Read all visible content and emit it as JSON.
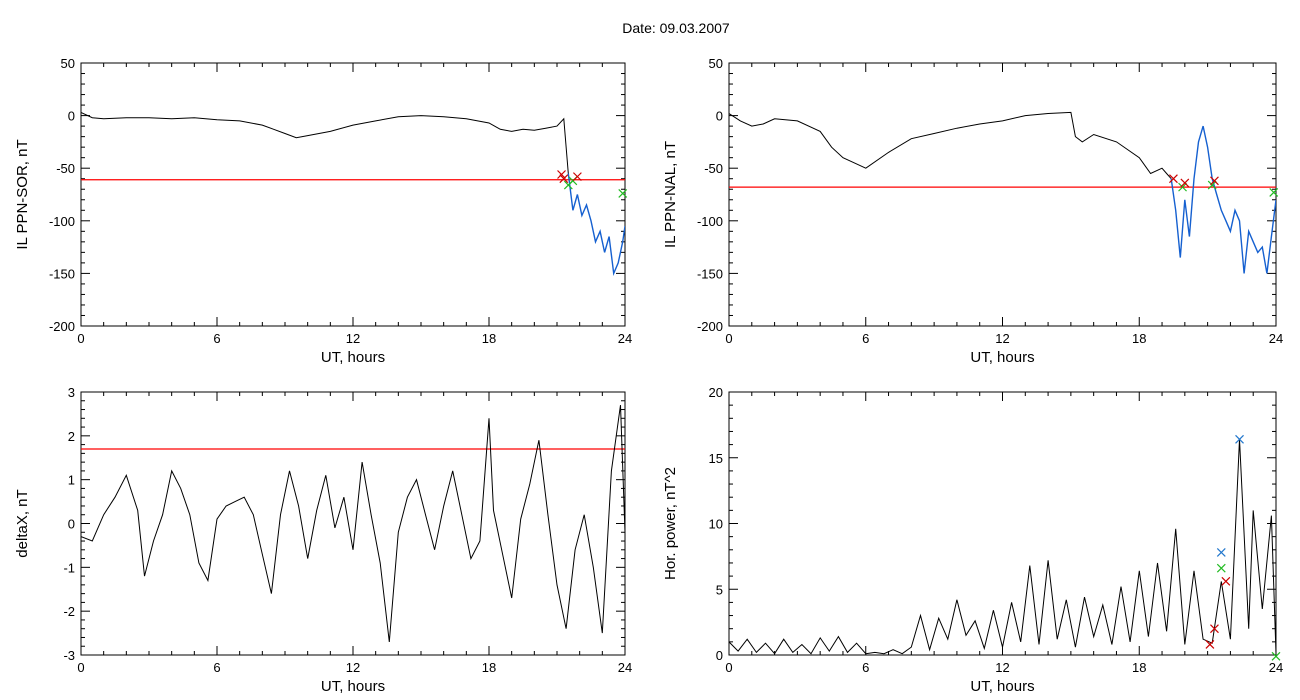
{
  "figure": {
    "title": "Date:  09.03.2007"
  },
  "colors": {
    "axis": "#000000",
    "trace": "#000000",
    "threshold": "#ff0000",
    "event": "#1560d0",
    "marker_red": "#cc0000",
    "marker_green": "#22bb22",
    "marker_blue": "#2277cc"
  },
  "chart_data": [
    {
      "id": "sor",
      "type": "line",
      "xlabel": "UT, hours",
      "ylabel": "IL PPN-SOR, nT",
      "xlim": [
        0,
        24
      ],
      "ylim": [
        -200,
        50
      ],
      "xticks": [
        0,
        6,
        12,
        18,
        24
      ],
      "xtick_labels": [
        "0",
        "6",
        "12",
        "18",
        "24"
      ],
      "yticks": [
        -200,
        -150,
        -100,
        -50,
        0,
        50
      ],
      "ytick_labels": [
        "-200",
        "-150",
        "-100",
        "-50",
        "0",
        "50"
      ],
      "threshold": -61,
      "series": [
        {
          "role": "trace",
          "color": "#000000",
          "x": [
            0,
            0.5,
            1,
            2,
            3,
            4,
            5,
            6,
            7,
            8,
            8.5,
            9,
            9.5,
            10,
            11,
            12,
            13,
            14,
            15,
            16,
            17,
            18,
            18.5,
            19,
            19.5,
            20,
            20.5,
            21,
            21.3,
            21.5
          ],
          "y": [
            3,
            -2,
            -3,
            -2,
            -2,
            -3,
            -2,
            -4,
            -5,
            -9,
            -13,
            -17,
            -21,
            -19,
            -15,
            -9,
            -5,
            -1,
            0,
            -1,
            -3,
            -7,
            -13,
            -15,
            -13,
            -14,
            -12,
            -10,
            -3,
            -55
          ]
        },
        {
          "role": "event",
          "color": "#1560d0",
          "x": [
            21.5,
            21.7,
            21.9,
            22.1,
            22.3,
            22.5,
            22.7,
            22.9,
            23.1,
            23.3,
            23.5,
            23.7,
            23.9,
            24
          ],
          "y": [
            -55,
            -90,
            -75,
            -95,
            -85,
            -100,
            -120,
            -110,
            -130,
            -115,
            -150,
            -140,
            -120,
            -105
          ]
        }
      ],
      "markers": [
        {
          "x": 21.2,
          "y": -56,
          "color": "#cc0000"
        },
        {
          "x": 21.3,
          "y": -60,
          "color": "#cc0000"
        },
        {
          "x": 21.5,
          "y": -66,
          "color": "#22bb22"
        },
        {
          "x": 21.7,
          "y": -62,
          "color": "#22bb22"
        },
        {
          "x": 21.9,
          "y": -58,
          "color": "#cc0000"
        },
        {
          "x": 23.9,
          "y": -74,
          "color": "#22bb22"
        }
      ]
    },
    {
      "id": "nal",
      "type": "line",
      "xlabel": "UT, hours",
      "ylabel": "IL PPN-NAL, nT",
      "xlim": [
        0,
        24
      ],
      "ylim": [
        -200,
        50
      ],
      "xticks": [
        0,
        6,
        12,
        18,
        24
      ],
      "xtick_labels": [
        "0",
        "6",
        "12",
        "18",
        "24"
      ],
      "yticks": [
        -200,
        -150,
        -100,
        -50,
        0,
        50
      ],
      "ytick_labels": [
        "-200",
        "-150",
        "-100",
        "-50",
        "0",
        "50"
      ],
      "threshold": -68,
      "series": [
        {
          "role": "trace",
          "color": "#000000",
          "x": [
            0,
            0.5,
            1,
            1.5,
            2,
            3,
            4,
            4.5,
            5,
            5.5,
            6,
            7,
            8,
            9,
            10,
            11,
            12,
            13,
            14,
            15,
            15.2,
            15.5,
            16,
            17,
            18,
            18.5,
            19,
            19.2,
            19.4
          ],
          "y": [
            2,
            -5,
            -10,
            -8,
            -3,
            -5,
            -15,
            -30,
            -40,
            -45,
            -50,
            -35,
            -22,
            -17,
            -12,
            -8,
            -5,
            0,
            2,
            3,
            -20,
            -25,
            -18,
            -25,
            -40,
            -55,
            -50,
            -55,
            -60
          ]
        },
        {
          "role": "event",
          "color": "#1560d0",
          "x": [
            19.4,
            19.6,
            19.8,
            20,
            20.2,
            20.4,
            20.6,
            20.8,
            21,
            21.2,
            21.4,
            21.6,
            21.8,
            22,
            22.2,
            22.4,
            22.6,
            22.8,
            23,
            23.2,
            23.4,
            23.6,
            23.8,
            24
          ],
          "y": [
            -60,
            -90,
            -135,
            -80,
            -115,
            -60,
            -25,
            -10,
            -30,
            -60,
            -75,
            -90,
            -100,
            -110,
            -90,
            -100,
            -150,
            -110,
            -120,
            -130,
            -125,
            -150,
            -115,
            -80
          ]
        }
      ],
      "markers": [
        {
          "x": 19.5,
          "y": -60,
          "color": "#cc0000"
        },
        {
          "x": 19.9,
          "y": -68,
          "color": "#22bb22"
        },
        {
          "x": 20.0,
          "y": -64,
          "color": "#cc0000"
        },
        {
          "x": 21.2,
          "y": -66,
          "color": "#22bb22"
        },
        {
          "x": 21.3,
          "y": -62,
          "color": "#cc0000"
        },
        {
          "x": 23.9,
          "y": -73,
          "color": "#22bb22"
        }
      ]
    },
    {
      "id": "deltax",
      "type": "line",
      "xlabel": "UT, hours",
      "ylabel": "deltaX, nT",
      "xlim": [
        0,
        24
      ],
      "ylim": [
        -3,
        3
      ],
      "xticks": [
        0,
        6,
        12,
        18,
        24
      ],
      "xtick_labels": [
        "0",
        "6",
        "12",
        "18",
        "24"
      ],
      "yticks": [
        -3,
        -2,
        -1,
        0,
        1,
        2,
        3
      ],
      "ytick_labels": [
        "-3",
        "-2",
        "-1",
        "0",
        "1",
        "2",
        "3"
      ],
      "threshold": 1.7,
      "series": [
        {
          "role": "trace",
          "color": "#000000",
          "x": [
            0,
            0.5,
            1,
            1.5,
            2,
            2.5,
            2.8,
            3.2,
            3.6,
            4,
            4.4,
            4.8,
            5.2,
            5.6,
            6,
            6.4,
            6.8,
            7.2,
            7.6,
            8,
            8.4,
            8.8,
            9.2,
            9.6,
            10,
            10.4,
            10.8,
            11.2,
            11.6,
            12,
            12.4,
            12.8,
            13.2,
            13.6,
            14,
            14.4,
            14.8,
            15.2,
            15.6,
            16,
            16.4,
            16.8,
            17.2,
            17.6,
            18,
            18.2,
            18.6,
            19,
            19.4,
            19.8,
            20.2,
            20.6,
            21,
            21.4,
            21.8,
            22.2,
            22.6,
            23,
            23.4,
            23.8,
            24
          ],
          "y": [
            -0.3,
            -0.4,
            0.2,
            0.6,
            1.1,
            0.3,
            -1.2,
            -0.4,
            0.2,
            1.2,
            0.8,
            0.2,
            -0.9,
            -1.3,
            0.1,
            0.4,
            0.5,
            0.6,
            0.2,
            -0.7,
            -1.6,
            0.2,
            1.2,
            0.4,
            -0.8,
            0.3,
            1.1,
            -0.1,
            0.6,
            -0.6,
            1.4,
            0.2,
            -0.9,
            -2.7,
            -0.2,
            0.6,
            1.0,
            0.2,
            -0.6,
            0.4,
            1.2,
            0.2,
            -0.8,
            -0.4,
            2.4,
            0.3,
            -0.7,
            -1.7,
            0.1,
            0.9,
            1.9,
            0.2,
            -1.4,
            -2.4,
            -0.6,
            0.2,
            -1.0,
            -2.5,
            1.2,
            2.7,
            -0.2
          ]
        }
      ],
      "markers": []
    },
    {
      "id": "power",
      "type": "line",
      "xlabel": "UT, hours",
      "ylabel": "Hor. power, nT^2",
      "xlim": [
        0,
        24
      ],
      "ylim": [
        0,
        20
      ],
      "xticks": [
        0,
        6,
        12,
        18,
        24
      ],
      "xtick_labels": [
        "0",
        "6",
        "12",
        "18",
        "24"
      ],
      "yticks": [
        0,
        5,
        10,
        15,
        20
      ],
      "ytick_labels": [
        "0",
        "5",
        "10",
        "15",
        "20"
      ],
      "threshold": null,
      "series": [
        {
          "role": "trace",
          "color": "#000000",
          "x": [
            0,
            0.4,
            0.8,
            1.2,
            1.6,
            2,
            2.4,
            2.8,
            3.2,
            3.6,
            4,
            4.4,
            4.8,
            5.2,
            5.6,
            6,
            6.4,
            6.8,
            7.2,
            7.6,
            8,
            8.4,
            8.8,
            9.2,
            9.6,
            10,
            10.4,
            10.8,
            11.2,
            11.6,
            12,
            12.4,
            12.8,
            13.2,
            13.6,
            14,
            14.4,
            14.8,
            15.2,
            15.6,
            16,
            16.4,
            16.8,
            17.2,
            17.6,
            18,
            18.4,
            18.8,
            19.2,
            19.6,
            20,
            20.4,
            20.8,
            21.2,
            21.6,
            22,
            22.4,
            22.8,
            23,
            23.4,
            23.8,
            24
          ],
          "y": [
            1.0,
            0.3,
            1.2,
            0.2,
            0.9,
            0.1,
            1.2,
            0.2,
            0.8,
            0.1,
            1.3,
            0.3,
            1.4,
            0.2,
            0.9,
            0.1,
            0.2,
            0.1,
            0.4,
            0.1,
            0.6,
            3.0,
            0.4,
            2.8,
            1.2,
            4.2,
            1.5,
            2.6,
            0.5,
            3.4,
            0.6,
            4.0,
            1.0,
            6.8,
            0.8,
            7.2,
            1.2,
            4.2,
            0.6,
            4.4,
            1.4,
            3.8,
            0.8,
            5.2,
            1.0,
            6.4,
            1.4,
            7.0,
            1.8,
            9.6,
            0.8,
            6.4,
            1.2,
            0.9,
            5.6,
            1.2,
            16.4,
            2.0,
            11.0,
            3.5,
            10.6,
            0.1
          ]
        }
      ],
      "markers": [
        {
          "x": 21.1,
          "y": 0.8,
          "color": "#cc0000"
        },
        {
          "x": 21.3,
          "y": 2.0,
          "color": "#cc0000"
        },
        {
          "x": 21.6,
          "y": 7.8,
          "color": "#2277cc"
        },
        {
          "x": 21.6,
          "y": 6.6,
          "color": "#22bb22"
        },
        {
          "x": 21.8,
          "y": 5.6,
          "color": "#cc0000"
        },
        {
          "x": 22.4,
          "y": 16.4,
          "color": "#2277cc"
        },
        {
          "x": 24.0,
          "y": -0.1,
          "color": "#22bb22"
        }
      ]
    }
  ]
}
